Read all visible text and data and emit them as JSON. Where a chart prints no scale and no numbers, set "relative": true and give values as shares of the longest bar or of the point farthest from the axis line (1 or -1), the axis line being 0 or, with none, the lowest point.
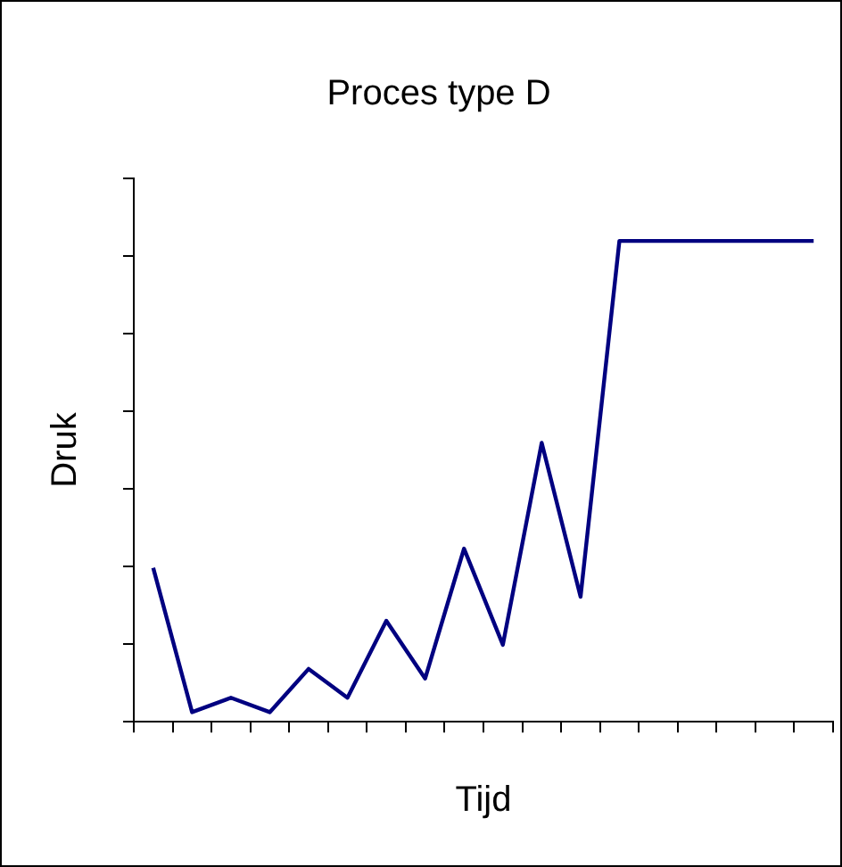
{
  "chart_data": {
    "type": "line",
    "title": "Proces type D",
    "xlabel": "Tijd",
    "ylabel": "Druk",
    "relative": true,
    "legend": false,
    "grid": false,
    "marker": "none",
    "categories": [
      null,
      null,
      null,
      null,
      null,
      null,
      null,
      null,
      null,
      null,
      null,
      null,
      null,
      null,
      null,
      null,
      null,
      null
    ],
    "series": [
      {
        "color": "#000080",
        "values": [
          0.32,
          0.02,
          0.05,
          0.02,
          0.11,
          0.05,
          0.21,
          0.09,
          0.36,
          0.16,
          0.58,
          0.26,
          1,
          1,
          1,
          1,
          1,
          1
        ]
      }
    ]
  }
}
